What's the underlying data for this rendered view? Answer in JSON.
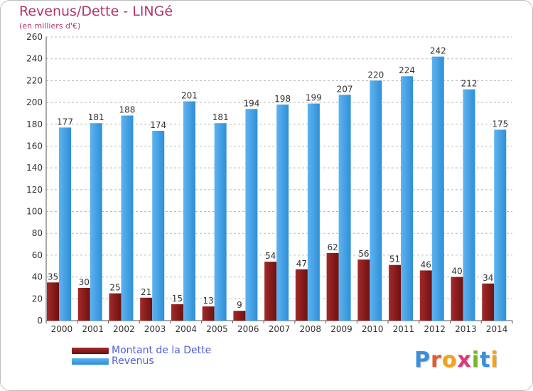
{
  "title": "Revenus/Dette - LINGé",
  "subtitle": "(en milliers d'€)",
  "colors": {
    "dette": "#6e1010",
    "dette_light": "#a32a2a",
    "revenus": "#2f8fd8",
    "revenus_light": "#5eb3f0",
    "grid": "#bbbbbb",
    "axis_text": "#333333"
  },
  "legend": {
    "dette_label": "Montant de la Dette",
    "revenus_label": "Revenus"
  },
  "logo": {
    "letters": [
      "P",
      "r",
      "o",
      "x",
      "i",
      "t",
      "i"
    ],
    "colors": [
      "#3a8fd8",
      "#e65b2c",
      "#f3a21b",
      "#d83b7a",
      "#77b52c",
      "#3a8fd8",
      "#f3a21b"
    ]
  },
  "chart_data": {
    "type": "bar",
    "title": "Revenus/Dette - LINGé",
    "subtitle": "(en milliers d'€)",
    "categories": [
      "2000",
      "2001",
      "2002",
      "2003",
      "2004",
      "2005",
      "2006",
      "2007",
      "2008",
      "2009",
      "2010",
      "2011",
      "2012",
      "2013",
      "2014"
    ],
    "series": [
      {
        "name": "Montant de la Dette",
        "values": [
          35,
          30,
          25,
          21,
          15,
          13,
          9,
          54,
          47,
          62,
          56,
          51,
          46,
          40,
          34
        ]
      },
      {
        "name": "Revenus",
        "values": [
          177,
          181,
          188,
          174,
          201,
          181,
          194,
          198,
          199,
          207,
          220,
          224,
          242,
          212,
          175
        ]
      }
    ],
    "ylim": [
      0,
      260
    ],
    "yticks": [
      0,
      20,
      40,
      60,
      80,
      100,
      120,
      140,
      160,
      180,
      200,
      220,
      240,
      260
    ],
    "grid": true,
    "legend_position": "bottom-left"
  }
}
